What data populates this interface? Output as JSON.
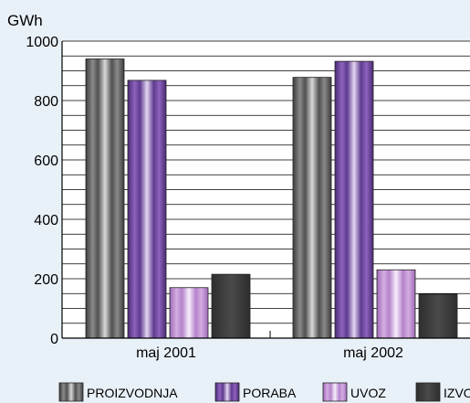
{
  "chart_data": {
    "type": "bar",
    "unit_label": "GWh",
    "categories": [
      "maj 2001",
      "maj 2002"
    ],
    "series": [
      {
        "name": "PROIZVODNJA",
        "values": [
          940,
          878
        ],
        "color": "#5a5a5a"
      },
      {
        "name": "PORABA",
        "values": [
          868,
          932
        ],
        "color": "#6a3d96"
      },
      {
        "name": "UVOZ",
        "values": [
          170,
          230
        ],
        "color": "#c79ad6"
      },
      {
        "name": "IZVOZ",
        "values": [
          215,
          148
        ],
        "color": "#3a3a3a"
      }
    ],
    "y_ticks": [
      "0",
      "200",
      "400",
      "600",
      "800",
      "1000"
    ],
    "ylim": [
      0,
      1000
    ],
    "grid": true,
    "legend_position": "bottom"
  }
}
